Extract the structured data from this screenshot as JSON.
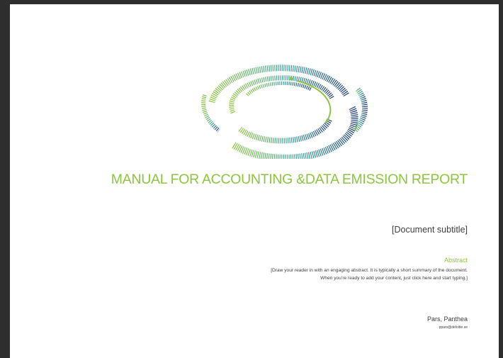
{
  "document": {
    "title": "MANUAL FOR ACCOUNTING &DATA EMISSION REPORT",
    "subtitle": "[Document subtitle]",
    "abstract": {
      "heading": "Abstract",
      "lines": [
        "[Draw your reader in with an engaging abstract. It is typically a short summary of the document.",
        "When you’re ready to add your content, just click here and start typing.]"
      ]
    },
    "author": {
      "name": "Pars, Panthea",
      "email": "ppars@deloitte.se"
    }
  }
}
